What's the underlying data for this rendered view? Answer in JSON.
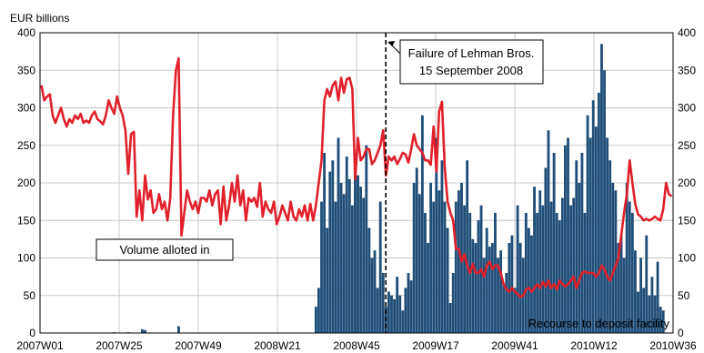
{
  "chart_data": {
    "type": "bar+line",
    "ylabel": "EUR billions",
    "ylim": [
      0,
      400
    ],
    "yticks": [
      0,
      50,
      100,
      150,
      200,
      250,
      300,
      350,
      400
    ],
    "x_tick_labels": [
      "2007W01",
      "2007W25",
      "2007W49",
      "2008W21",
      "2008W45",
      "2009W17",
      "2009W41",
      "2010W12",
      "2010W36"
    ],
    "grid": true,
    "colors": {
      "bars": "#1f4e79",
      "line": "#e0202a"
    },
    "annotations": {
      "lehman_line1": "Failure of Lehman Bros.",
      "lehman_line2": "15 September 2008",
      "volume_label": "Volume alloted in",
      "deposit_label": "Recourse to deposit facility"
    },
    "series": [
      {
        "type": "line",
        "values": [
          330,
          310,
          315,
          318,
          290,
          280,
          290,
          300,
          285,
          275,
          285,
          280,
          290,
          285,
          292,
          280,
          283,
          280,
          290,
          295,
          285,
          282,
          278,
          290,
          310,
          300,
          292,
          315,
          300,
          290,
          270,
          212,
          265,
          268,
          155,
          190,
          150,
          210,
          178,
          190,
          160,
          165,
          185,
          165,
          175,
          150,
          180,
          290,
          350,
          366,
          130,
          160,
          190,
          175,
          165,
          175,
          160,
          180,
          180,
          175,
          190,
          170,
          185,
          190,
          145,
          195,
          150,
          170,
          200,
          175,
          210,
          170,
          190,
          150,
          180,
          175,
          180,
          168,
          200,
          155,
          175,
          165,
          160,
          175,
          145,
          155,
          170,
          160,
          150,
          175,
          155,
          150,
          165,
          155,
          170,
          150,
          172,
          150,
          170,
          200,
          230,
          310,
          325,
          315,
          330,
          335,
          310,
          340,
          320,
          338,
          340,
          325,
          205,
          260,
          230,
          235,
          245,
          245,
          225,
          230,
          240,
          250,
          270,
          210,
          235,
          230,
          235,
          225,
          232,
          240,
          238,
          227,
          245,
          265,
          250,
          245,
          240,
          230,
          230,
          224,
          275,
          215,
          295,
          308,
          220,
          175,
          160,
          150,
          112,
          112,
          95,
          105,
          90,
          80,
          92,
          80,
          80,
          85,
          75,
          90,
          95,
          85,
          90,
          90,
          80,
          65,
          58,
          55,
          60,
          55,
          52,
          48,
          50,
          58,
          60,
          55,
          60,
          65,
          60,
          68,
          62,
          70,
          60,
          65,
          58,
          70,
          65,
          62,
          65,
          70,
          75,
          60,
          70,
          80,
          82,
          80,
          80,
          80,
          75,
          80,
          90,
          85,
          75,
          70,
          80,
          90,
          100,
          130,
          160,
          185,
          230,
          200,
          172,
          158,
          155,
          150,
          152,
          150,
          152,
          155,
          152,
          150,
          165,
          200,
          185,
          182
        ]
      },
      {
        "type": "bar",
        "values": [
          0,
          0,
          0,
          0,
          0,
          0,
          0,
          0,
          0,
          0,
          0,
          0,
          0,
          0,
          0,
          0,
          0,
          0,
          0,
          0,
          0,
          0,
          0,
          0,
          0,
          0,
          1,
          0,
          0,
          0,
          0,
          1,
          0,
          0,
          0,
          0,
          5,
          4,
          0,
          0,
          0,
          0,
          0,
          0,
          0,
          0,
          0,
          0,
          0,
          9,
          0,
          0,
          0,
          0,
          0,
          0,
          0,
          0,
          0,
          0,
          0,
          0,
          0,
          0,
          0,
          0,
          0,
          0,
          0,
          0,
          0,
          0,
          0,
          0,
          0,
          0,
          0,
          0,
          0,
          0,
          0,
          0,
          0,
          0,
          0,
          0,
          0,
          0,
          0,
          0,
          0,
          0,
          0,
          0,
          0,
          0,
          0,
          0,
          35,
          60,
          175,
          240,
          140,
          215,
          230,
          175,
          260,
          200,
          185,
          235,
          205,
          170,
          240,
          210,
          195,
          180,
          250,
          140,
          100,
          110,
          60,
          175,
          80,
          35,
          55,
          50,
          45,
          75,
          50,
          30,
          60,
          80,
          70,
          200,
          220,
          185,
          290,
          160,
          120,
          200,
          175,
          260,
          190,
          230,
          175,
          140,
          40,
          80,
          175,
          190,
          200,
          170,
          230,
          160,
          125,
          120,
          150,
          170,
          100,
          140,
          115,
          120,
          160,
          100,
          110,
          65,
          80,
          120,
          130,
          60,
          170,
          120,
          100,
          160,
          140,
          130,
          195,
          160,
          190,
          170,
          220,
          270,
          175,
          240,
          160,
          150,
          180,
          250,
          260,
          170,
          180,
          230,
          200,
          240,
          160,
          290,
          260,
          310,
          275,
          320,
          385,
          350,
          260,
          230,
          200,
          190,
          120,
          130,
          100,
          200,
          175,
          160,
          110,
          55,
          100,
          60,
          130,
          50,
          75,
          50,
          95,
          35,
          30
        ]
      }
    ]
  }
}
